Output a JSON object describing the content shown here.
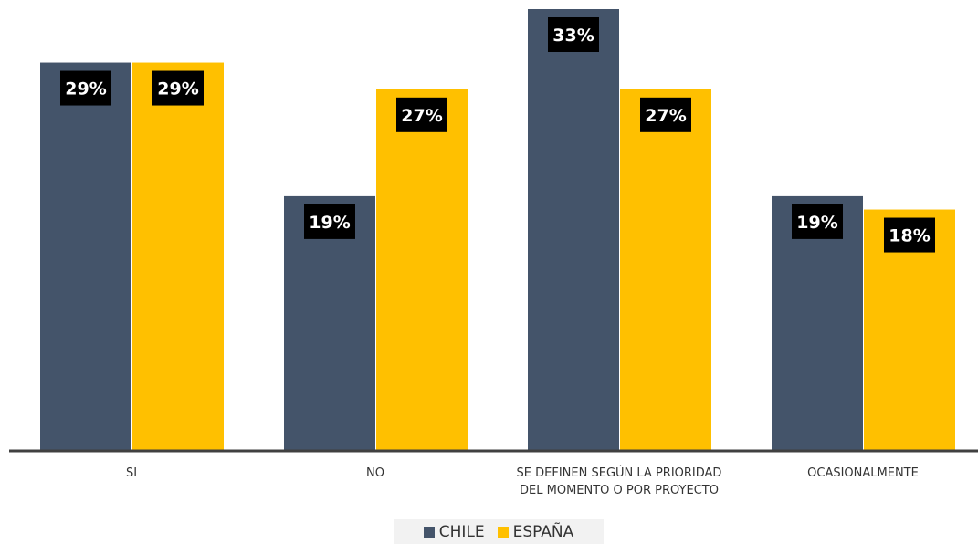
{
  "chart_data": {
    "type": "bar",
    "categories": [
      "SI",
      "NO",
      "SE DEFINEN SEGÚN LA PRIORIDAD DEL MOMENTO O POR PROYECTO",
      "OCASIONALMENTE"
    ],
    "category_lines": [
      [
        "SI"
      ],
      [
        "NO"
      ],
      [
        "SE DEFINEN SEGÚN LA PRIORIDAD",
        "DEL MOMENTO O POR PROYECTO"
      ],
      [
        "OCASIONALMENTE"
      ]
    ],
    "series": [
      {
        "name": "CHILE",
        "color": "#44546a",
        "values": [
          29,
          19,
          33,
          19
        ],
        "labels": [
          "29%",
          "19%",
          "33%",
          "19%"
        ]
      },
      {
        "name": "ESPAÑA",
        "color": "#ffc000",
        "values": [
          29,
          27,
          27,
          18
        ],
        "labels": [
          "29%",
          "27%",
          "27%",
          "18%"
        ]
      }
    ],
    "ylim": [
      0,
      33
    ],
    "grid": false,
    "legend_position": "bottom-center"
  }
}
